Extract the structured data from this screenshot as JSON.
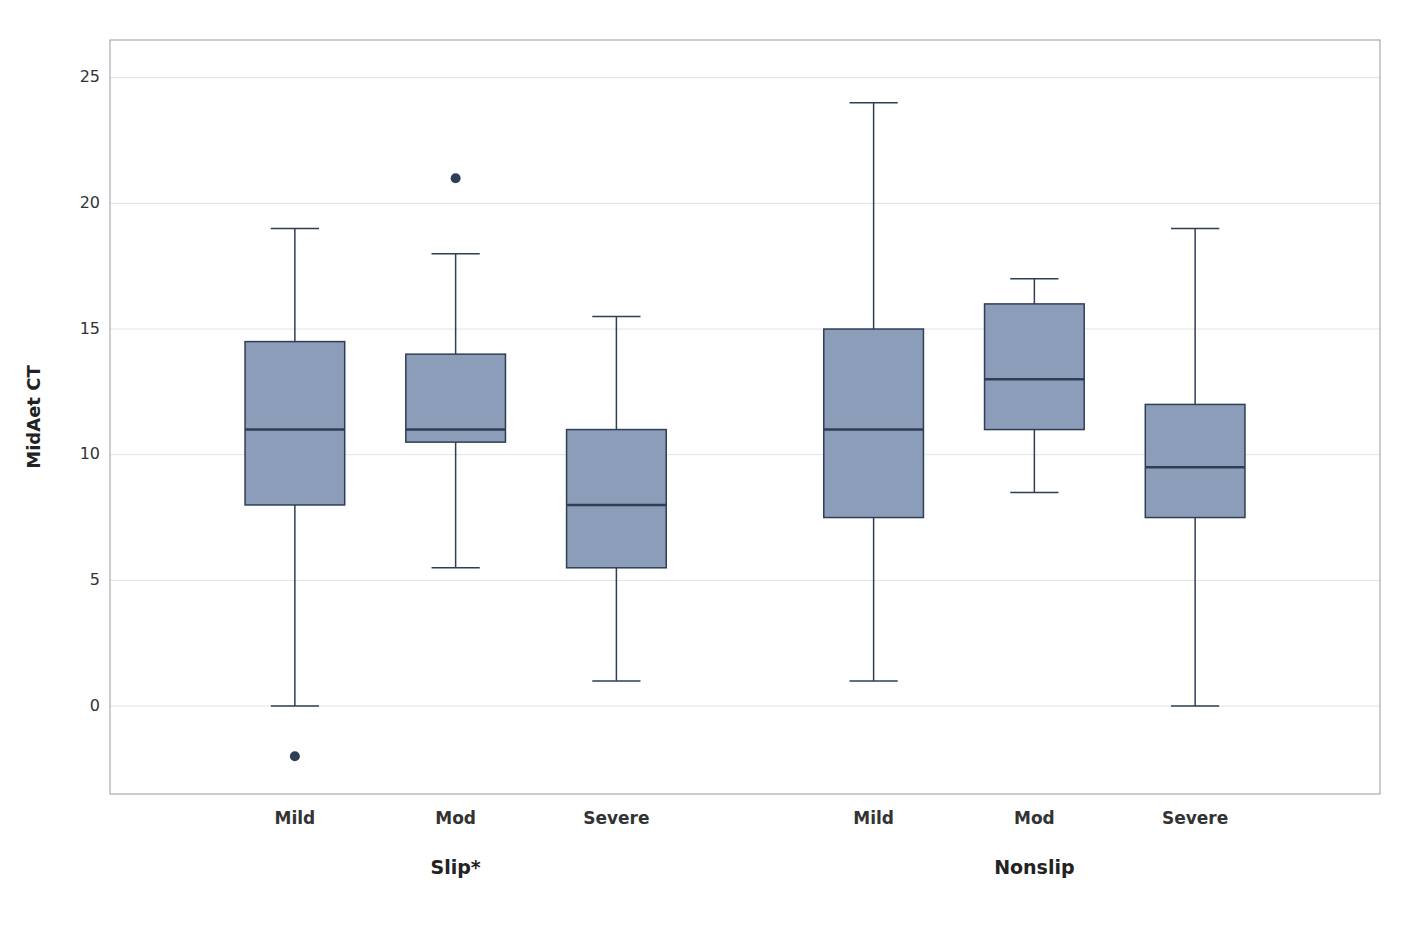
{
  "chart_data": {
    "type": "box",
    "ylabel": "MidAet CT",
    "ylim": [
      -3.5,
      26.5
    ],
    "yticks": [
      0,
      5,
      10,
      15,
      20,
      25
    ],
    "grid": true,
    "color": "#8B9DB8",
    "groups": [
      {
        "name": "Slip*",
        "categories": [
          "Mild",
          "Mod",
          "Severe"
        ],
        "whisker_low": [
          0,
          5.5,
          1.0
        ],
        "q1": [
          8.0,
          10.5,
          5.5
        ],
        "median": [
          11.0,
          11.0,
          8.0
        ],
        "q3": [
          14.5,
          14.0,
          11.0
        ],
        "whisker_high": [
          19.0,
          18.0,
          15.5
        ],
        "outliers": [
          [
            -2.0
          ],
          [
            21.0
          ],
          []
        ]
      },
      {
        "name": "Nonslip",
        "categories": [
          "Mild",
          "Mod",
          "Severe"
        ],
        "whisker_low": [
          1.0,
          8.5,
          0.0
        ],
        "q1": [
          7.5,
          11.0,
          7.5
        ],
        "median": [
          11.0,
          13.0,
          9.5
        ],
        "q3": [
          15.0,
          16.0,
          12.0
        ],
        "whisker_high": [
          24.0,
          17.0,
          19.0
        ],
        "outliers": [
          [],
          [],
          []
        ]
      }
    ]
  }
}
